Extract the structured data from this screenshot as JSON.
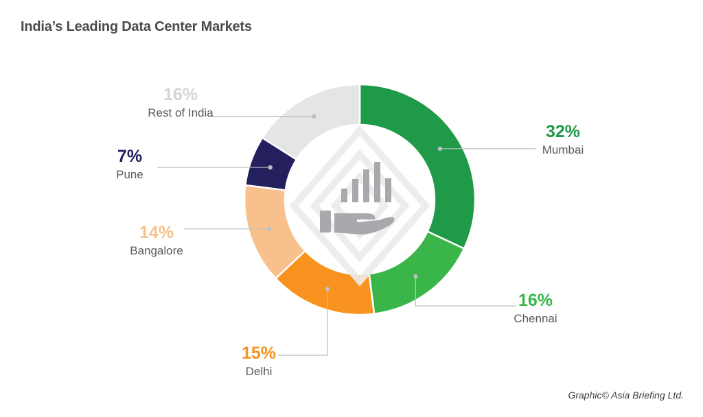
{
  "title": "India’s Leading Data Center Markets",
  "credit": "Graphic© Asia Briefing Ltd.",
  "chart_data": {
    "type": "pie",
    "donut": true,
    "categories": [
      "Mumbai",
      "Chennai",
      "Delhi",
      "Bangalore",
      "Pune",
      "Rest of India"
    ],
    "values": [
      32,
      16,
      15,
      14,
      7,
      16
    ],
    "labels": [
      "32%",
      "16%",
      "15%",
      "14%",
      "7%",
      "16%"
    ],
    "colors": [
      "#1e9a48",
      "#3ab54a",
      "#f7931e",
      "#f8c08c",
      "#24205e",
      "#e4e5e6"
    ],
    "start": "top, clockwise"
  }
}
